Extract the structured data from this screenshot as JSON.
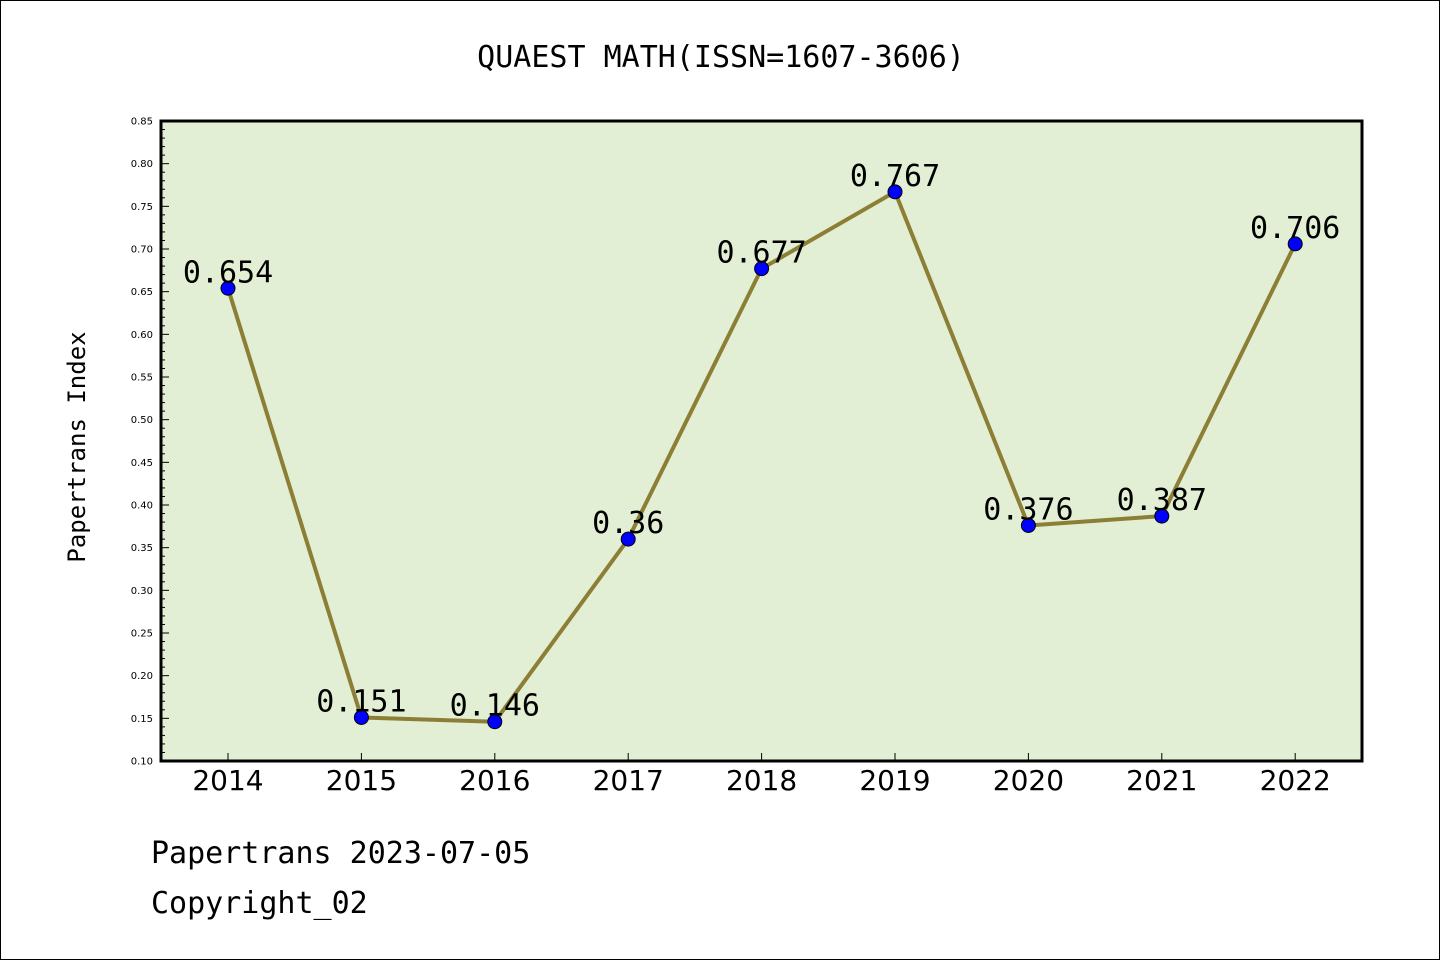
{
  "chart_data": {
    "type": "line",
    "title": "QUAEST MATH(ISSN=1607-3606)",
    "xlabel": "",
    "ylabel": "Papertrans Index",
    "categories": [
      "2014",
      "2015",
      "2016",
      "2017",
      "2018",
      "2019",
      "2020",
      "2021",
      "2022"
    ],
    "series": [
      {
        "values": [
          0.654,
          0.151,
          0.146,
          0.36,
          0.677,
          0.767,
          0.376,
          0.387,
          0.706
        ],
        "labels": [
          "0.654",
          "0.151",
          "0.146",
          "0.36",
          "0.677",
          "0.767",
          "0.376",
          "0.387",
          "0.706"
        ],
        "line_color": "#8c7f35",
        "marker_color": "#0000ff"
      }
    ],
    "ylim": [
      0.1,
      0.85
    ],
    "yticks": [
      "0.10",
      "0.15",
      "0.20",
      "0.25",
      "0.30",
      "0.35",
      "0.40",
      "0.45",
      "0.50",
      "0.55",
      "0.60",
      "0.65",
      "0.70",
      "0.75",
      "0.80",
      "0.85"
    ],
    "plot_background": "#e2efd5",
    "grid": false,
    "legend": "none"
  },
  "footer": {
    "line1": "Papertrans 2023-07-05",
    "line2": "Copyright_02"
  }
}
